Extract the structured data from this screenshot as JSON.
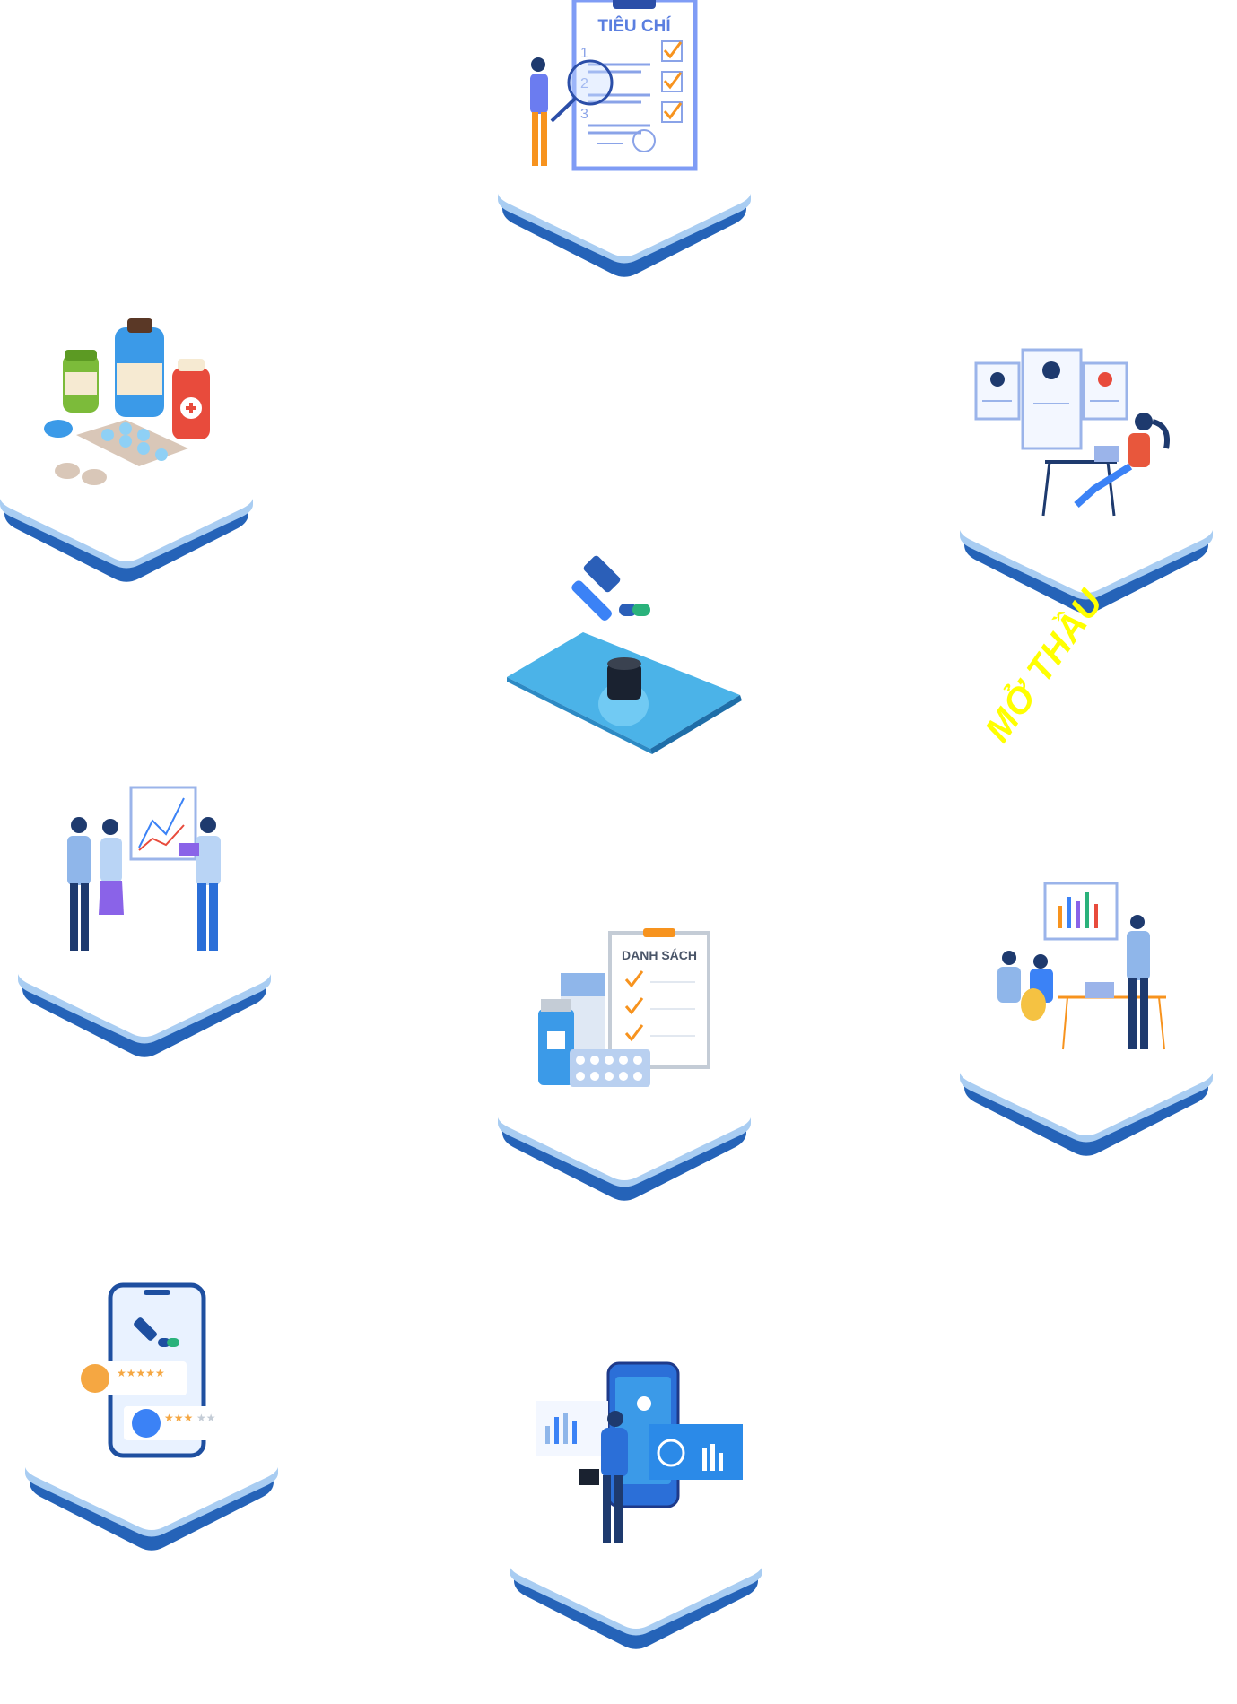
{
  "colors": {
    "platform_dark": "#2563b8",
    "platform_light": "#a9cdf2",
    "accent_blue": "#3b82f6",
    "check_orange": "#f7931e",
    "label_yellow": "#ffff00"
  },
  "tiles": [
    {
      "name": "criteria-checklist",
      "icon": "clipboard-checklist-icon",
      "text": "TIÊU CHÍ",
      "numbers": [
        "1",
        "2",
        "3"
      ]
    },
    {
      "name": "medicines",
      "icon": "medicine-bottles-icon"
    },
    {
      "name": "candidate-profiles",
      "icon": "profile-cards-icon"
    },
    {
      "name": "auction-platform",
      "icon": "gavel-icon"
    },
    {
      "name": "team-presentation",
      "icon": "team-chart-icon"
    },
    {
      "name": "drug-list",
      "icon": "list-document-icon",
      "text": "DANH SÁCH"
    },
    {
      "name": "meeting-analytics",
      "icon": "meeting-icon"
    },
    {
      "name": "mobile-reviews",
      "icon": "phone-rating-icon"
    },
    {
      "name": "digital-dashboard",
      "icon": "dashboard-icon"
    }
  ],
  "floating_label": "MỞ THẦU"
}
